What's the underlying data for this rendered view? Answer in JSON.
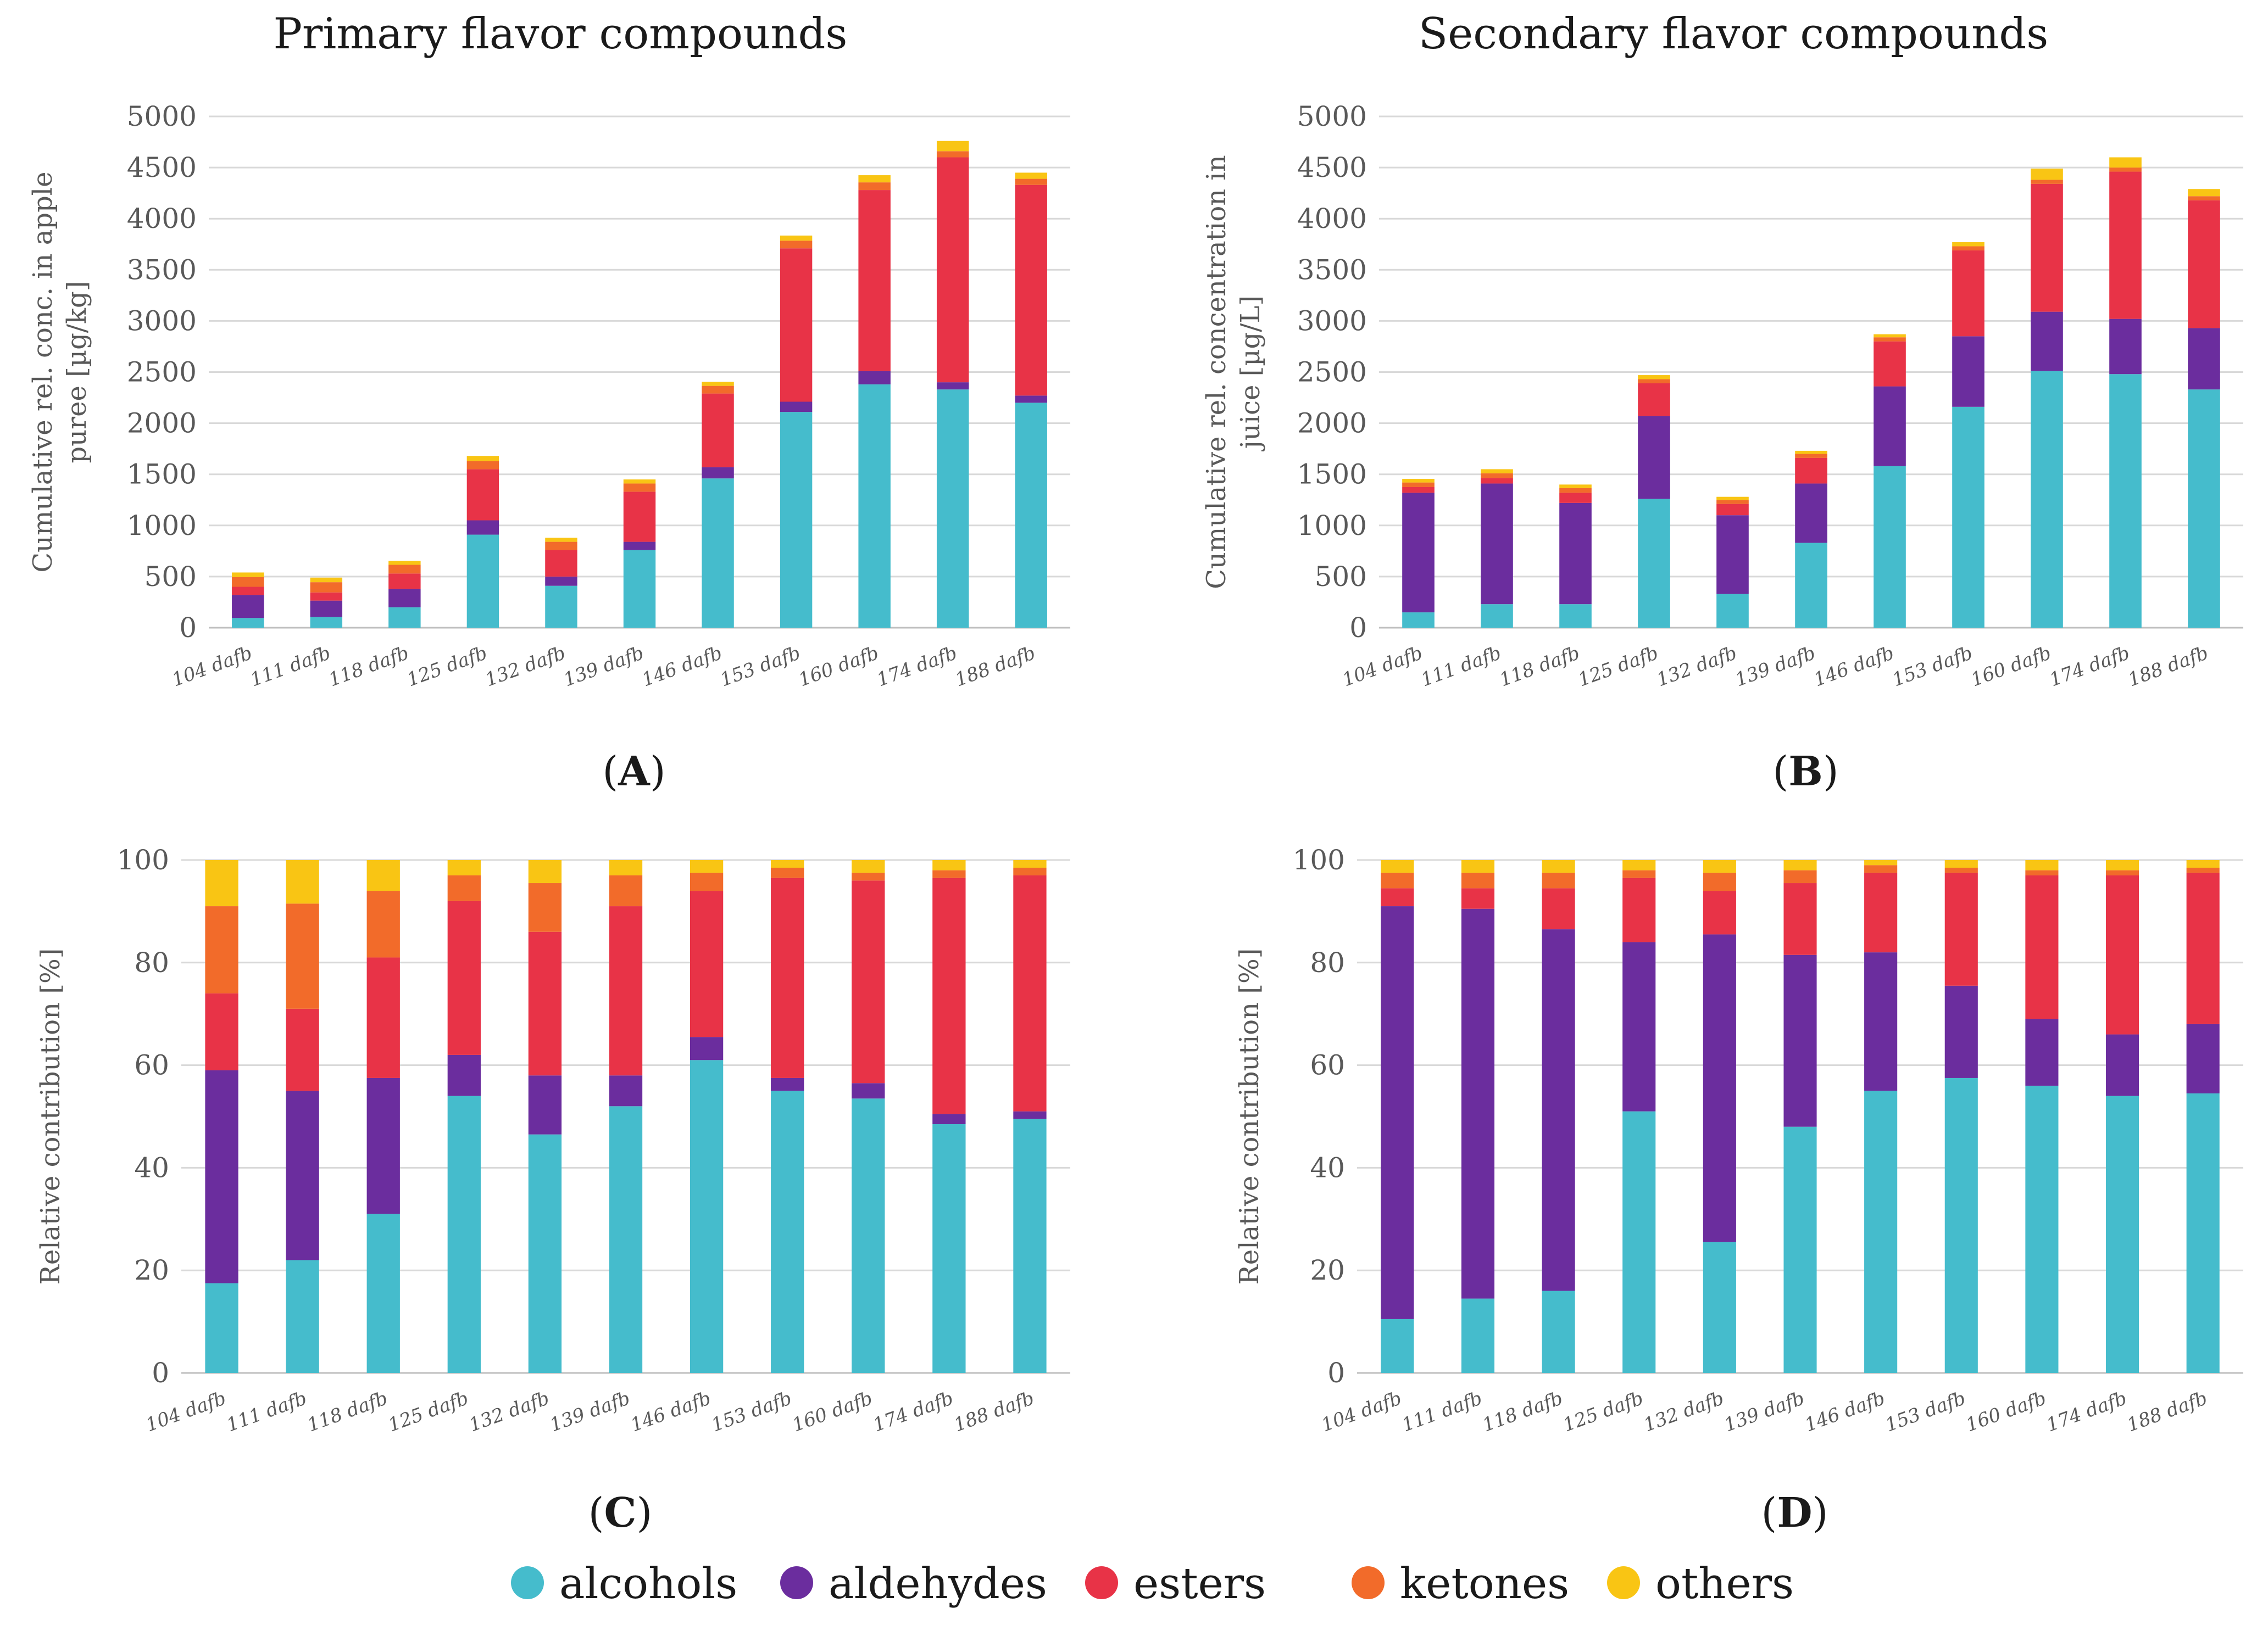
{
  "chart_data": [
    {
      "id": "A",
      "type": "bar",
      "stacked": true,
      "title": "Primary flavor compounds",
      "panel_label": "A",
      "ylabel_lines": [
        "Cumulative rel. conc. in apple",
        "puree [µg/kg]"
      ],
      "ylim": [
        0,
        5000
      ],
      "yticks": [
        0,
        500,
        1000,
        1500,
        2000,
        2500,
        3000,
        3500,
        4000,
        4500,
        5000
      ],
      "categories": [
        "104 dafb",
        "111 dafb",
        "118 dafb",
        "125 dafb",
        "132 dafb",
        "139 dafb",
        "146 dafb",
        "153 dafb",
        "160 dafb",
        "174 dafb",
        "188 dafb"
      ],
      "series": [
        {
          "name": "alcohols",
          "values": [
            95,
            105,
            200,
            910,
            410,
            760,
            1460,
            2110,
            2380,
            2330,
            2200
          ]
        },
        {
          "name": "aldehydes",
          "values": [
            225,
            160,
            180,
            140,
            90,
            80,
            110,
            100,
            130,
            70,
            70
          ]
        },
        {
          "name": "esters",
          "values": [
            80,
            80,
            150,
            500,
            260,
            490,
            720,
            1500,
            1770,
            2200,
            2060
          ]
        },
        {
          "name": "ketones",
          "values": [
            95,
            100,
            85,
            80,
            80,
            80,
            75,
            75,
            75,
            60,
            60
          ]
        },
        {
          "name": "others",
          "values": [
            45,
            45,
            40,
            50,
            40,
            40,
            40,
            50,
            70,
            100,
            60
          ]
        }
      ]
    },
    {
      "id": "B",
      "type": "bar",
      "stacked": true,
      "title": "Secondary flavor compounds",
      "panel_label": "B",
      "ylabel_lines": [
        "Cumulative rel. concentration in",
        "juice [µg/L]"
      ],
      "ylim": [
        0,
        5000
      ],
      "yticks": [
        0,
        500,
        1000,
        1500,
        2000,
        2500,
        3000,
        3500,
        4000,
        4500,
        5000
      ],
      "categories": [
        "104 dafb",
        "111 dafb",
        "118 dafb",
        "125 dafb",
        "132 dafb",
        "139 dafb",
        "146 dafb",
        "153 dafb",
        "160 dafb",
        "174 dafb",
        "188 dafb"
      ],
      "series": [
        {
          "name": "alcohols",
          "values": [
            150,
            230,
            230,
            1260,
            330,
            830,
            1580,
            2160,
            2510,
            2480,
            2330
          ]
        },
        {
          "name": "aldehydes",
          "values": [
            1170,
            1180,
            990,
            810,
            770,
            580,
            780,
            690,
            580,
            540,
            600
          ]
        },
        {
          "name": "esters",
          "values": [
            55,
            55,
            100,
            320,
            110,
            250,
            440,
            840,
            1250,
            1440,
            1250
          ]
        },
        {
          "name": "ketones",
          "values": [
            45,
            45,
            45,
            40,
            40,
            40,
            40,
            40,
            40,
            40,
            40
          ]
        },
        {
          "name": "others",
          "values": [
            35,
            40,
            35,
            40,
            30,
            30,
            30,
            40,
            110,
            100,
            70
          ]
        }
      ]
    },
    {
      "id": "C",
      "type": "bar",
      "stacked": true,
      "panel_label": "C",
      "ylabel_lines": [
        "Relative contribution [%]"
      ],
      "ylim": [
        0,
        100
      ],
      "yticks": [
        0,
        20,
        40,
        60,
        80,
        100
      ],
      "categories": [
        "104 dafb",
        "111 dafb",
        "118 dafb",
        "125 dafb",
        "132 dafb",
        "139 dafb",
        "146 dafb",
        "153 dafb",
        "160 dafb",
        "174 dafb",
        "188 dafb"
      ],
      "series": [
        {
          "name": "alcohols",
          "values": [
            17.5,
            22,
            31,
            54,
            46.5,
            52,
            61,
            55,
            53.5,
            48.5,
            49.5
          ]
        },
        {
          "name": "aldehydes",
          "values": [
            41.5,
            33,
            26.5,
            8,
            11.5,
            6,
            4.5,
            2.5,
            3,
            2,
            1.5
          ]
        },
        {
          "name": "esters",
          "values": [
            15,
            16,
            23.5,
            30,
            28,
            33,
            28.5,
            39,
            39.5,
            46,
            46
          ]
        },
        {
          "name": "ketones",
          "values": [
            17,
            20.5,
            13,
            5,
            9.5,
            6,
            3.5,
            2,
            1.5,
            1.5,
            1.5
          ]
        },
        {
          "name": "others",
          "values": [
            9,
            8.5,
            6,
            3,
            4.5,
            3,
            2.5,
            1.5,
            2.5,
            2,
            1.5
          ]
        }
      ]
    },
    {
      "id": "D",
      "type": "bar",
      "stacked": true,
      "panel_label": "D",
      "ylabel_lines": [
        "Relative contribution [%]"
      ],
      "ylim": [
        0,
        100
      ],
      "yticks": [
        0,
        20,
        40,
        60,
        80,
        100
      ],
      "categories": [
        "104 dafb",
        "111 dafb",
        "118 dafb",
        "125 dafb",
        "132 dafb",
        "139 dafb",
        "146 dafb",
        "153 dafb",
        "160 dafb",
        "174 dafb",
        "188 dafb"
      ],
      "series": [
        {
          "name": "alcohols",
          "values": [
            10.5,
            14.5,
            16,
            51,
            25.5,
            48,
            55,
            57.5,
            56,
            54,
            54.5
          ]
        },
        {
          "name": "aldehydes",
          "values": [
            80.5,
            76,
            70.5,
            33,
            60,
            33.5,
            27,
            18,
            13,
            12,
            13.5
          ]
        },
        {
          "name": "esters",
          "values": [
            3.5,
            4,
            8,
            12.5,
            8.5,
            14,
            15.5,
            22,
            28,
            31,
            29.5
          ]
        },
        {
          "name": "ketones",
          "values": [
            3,
            3,
            3,
            1.5,
            3.5,
            2.5,
            1.5,
            1,
            1,
            1,
            1
          ]
        },
        {
          "name": "others",
          "values": [
            2.5,
            2.5,
            2.5,
            2,
            2.5,
            2,
            1,
            1.5,
            2,
            2,
            1.5
          ]
        }
      ]
    }
  ],
  "legend": [
    {
      "name": "alcohols",
      "color": "#45BCCC"
    },
    {
      "name": "aldehydes",
      "color": "#6B2D9E"
    },
    {
      "name": "esters",
      "color": "#E83347"
    },
    {
      "name": "ketones",
      "color": "#F26B2A"
    },
    {
      "name": "others",
      "color": "#F9C514"
    }
  ]
}
